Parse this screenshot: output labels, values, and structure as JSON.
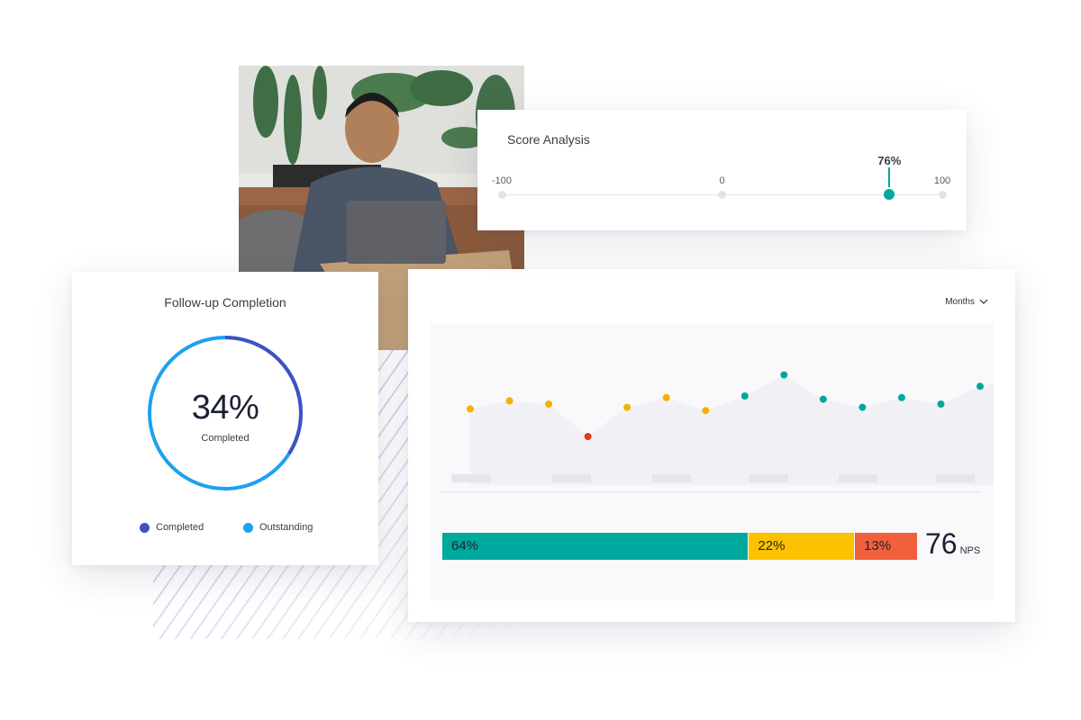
{
  "colors": {
    "teal": "#00a99d",
    "yellow": "#fcc200",
    "red": "#f0603c",
    "navy": "#3f51c3",
    "sky": "#1da1f2",
    "detractor_dot": "#e03a1a",
    "passive_dot": "#f5b100"
  },
  "score_analysis": {
    "title": "Score Analysis",
    "value": 76,
    "value_label": "76%",
    "min": -100,
    "max": 100,
    "ticks": [
      "-100",
      "0",
      "100"
    ]
  },
  "followup": {
    "title": "Follow-up Completion",
    "percent": 34,
    "value_label": "34%",
    "value_caption": "Completed",
    "legend": [
      {
        "label": "Completed",
        "color": "#3f51c3"
      },
      {
        "label": "Outstanding",
        "color": "#1da1f2"
      }
    ]
  },
  "dashboard": {
    "period_label": "Months",
    "period_icon": "chevron-down-icon",
    "breakdown": [
      {
        "label": "64%",
        "value": 64,
        "color": "#00a99d"
      },
      {
        "label": "22%",
        "value": 22,
        "color": "#fcc200"
      },
      {
        "label": "13%",
        "value": 13,
        "color": "#f0603c"
      }
    ],
    "nps_value": "76",
    "nps_unit": "NPS"
  },
  "chart_data": {
    "type": "scatter",
    "series": [
      {
        "values": [
          47,
          52,
          50,
          30,
          48,
          54,
          46,
          55,
          68,
          53,
          48,
          54,
          50,
          61
        ],
        "colors": [
          "#f5b100",
          "#f5b100",
          "#f5b100",
          "#e03a1a",
          "#f5b100",
          "#f5b100",
          "#f5b100",
          "#00a99d",
          "#00a99d",
          "#00a99d",
          "#00a99d",
          "#00a99d",
          "#00a99d",
          "#00a99d"
        ]
      }
    ],
    "ylim": [
      0,
      100
    ],
    "grid": false
  }
}
